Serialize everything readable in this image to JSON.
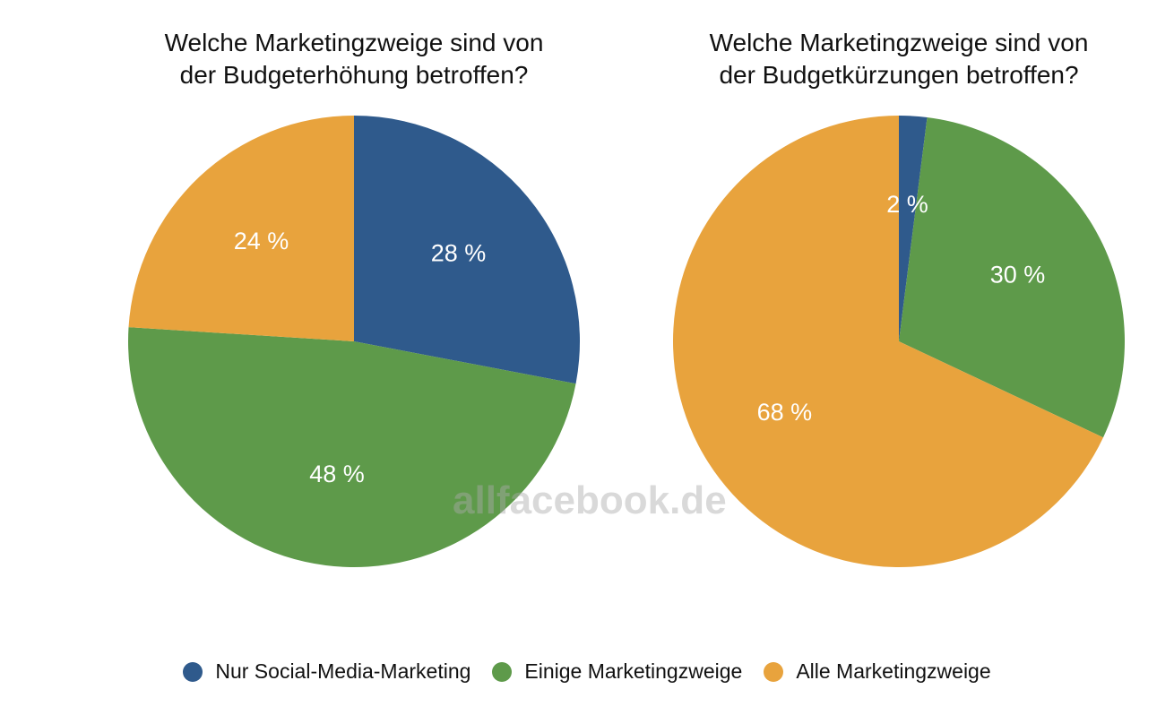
{
  "colors": {
    "nur_social": "#2f5a8c",
    "einige": "#5e9a4a",
    "alle": "#e8a33d"
  },
  "watermark": "allfacebook.de",
  "chart_data": [
    {
      "type": "pie",
      "title_line1": "Welche Marketingzweige sind von",
      "title_line2": "der Budgeterhöhung betroffen?",
      "slices": [
        {
          "name": "Nur Social-Media-Marketing",
          "value": 28,
          "label": "28 %",
          "color_key": "nur_social"
        },
        {
          "name": "Einige Marketingzweige",
          "value": 48,
          "label": "48 %",
          "color_key": "einige"
        },
        {
          "name": "Alle Marketingzweige",
          "value": 24,
          "label": "24 %",
          "color_key": "alle"
        }
      ]
    },
    {
      "type": "pie",
      "title_line1": "Welche Marketingzweige sind von",
      "title_line2": "der Budgetkürzungen betroffen?",
      "slices": [
        {
          "name": "Nur Social-Media-Marketing",
          "value": 2,
          "label": "2 %",
          "color_key": "nur_social"
        },
        {
          "name": "Einige Marketingzweige",
          "value": 30,
          "label": "30 %",
          "color_key": "einige"
        },
        {
          "name": "Alle Marketingzweige",
          "value": 68,
          "label": "68 %",
          "color_key": "alle"
        }
      ]
    }
  ],
  "legend": [
    {
      "label": "Nur Social-Media-Marketing",
      "color_key": "nur_social"
    },
    {
      "label": "Einige Marketingzweige",
      "color_key": "einige"
    },
    {
      "label": "Alle Marketingzweige",
      "color_key": "alle"
    }
  ]
}
